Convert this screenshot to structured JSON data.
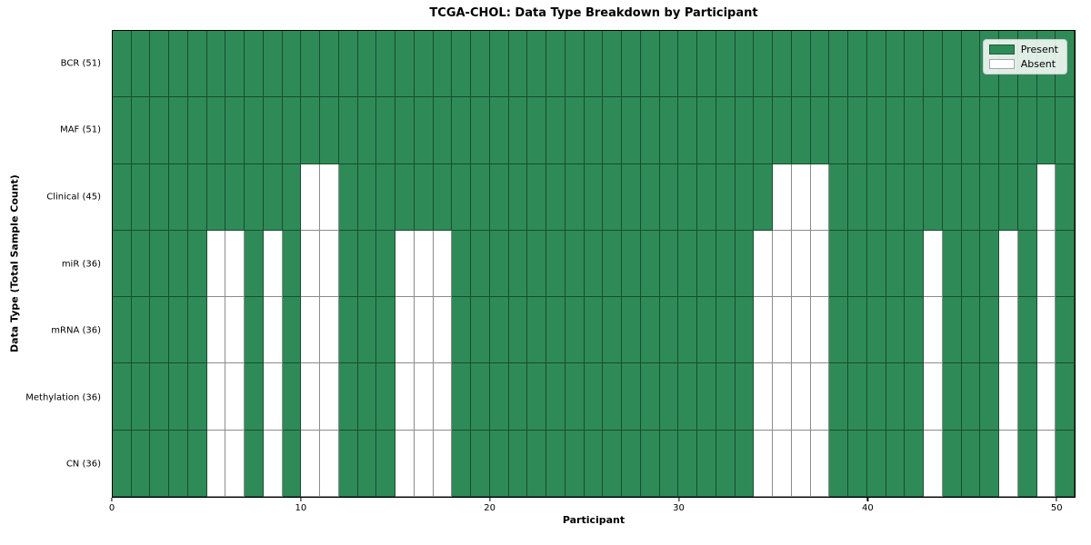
{
  "chart_data": {
    "type": "heatmap",
    "title": "TCGA-CHOL: Data Type Breakdown by Participant",
    "xlabel": "Participant",
    "ylabel": "Data Type (Total Sample Count)",
    "n_participants": 51,
    "x_range": [
      0,
      51
    ],
    "x_ticks": [
      0,
      10,
      20,
      30,
      40,
      50
    ],
    "grid": true,
    "colors": {
      "present": "#2e8b57",
      "absent": "#ffffff",
      "grid_line": "rgba(0,0,0,0.45)"
    },
    "legend": {
      "position": "upper-right",
      "entries": [
        {
          "label": "Present",
          "color": "#2e8b57"
        },
        {
          "label": "Absent",
          "color": "#ffffff"
        }
      ]
    },
    "rows": [
      {
        "label": "BCR (51)",
        "total": 51,
        "absent_participants": []
      },
      {
        "label": "MAF (51)",
        "total": 51,
        "absent_participants": []
      },
      {
        "label": "Clinical (45)",
        "total": 45,
        "absent_participants": [
          10,
          11,
          35,
          36,
          37,
          49
        ]
      },
      {
        "label": "miR (36)",
        "total": 36,
        "absent_participants": [
          5,
          6,
          8,
          10,
          11,
          15,
          16,
          17,
          34,
          35,
          36,
          37,
          43,
          47,
          49
        ]
      },
      {
        "label": "mRNA (36)",
        "total": 36,
        "absent_participants": [
          5,
          6,
          8,
          10,
          11,
          15,
          16,
          17,
          34,
          35,
          36,
          37,
          43,
          47,
          49
        ]
      },
      {
        "label": "Methylation (36)",
        "total": 36,
        "absent_participants": [
          5,
          6,
          8,
          10,
          11,
          15,
          16,
          17,
          34,
          35,
          36,
          37,
          43,
          47,
          49
        ]
      },
      {
        "label": "CN (36)",
        "total": 36,
        "absent_participants": [
          5,
          6,
          8,
          10,
          11,
          15,
          16,
          17,
          34,
          35,
          36,
          37,
          43,
          47,
          49
        ]
      }
    ]
  }
}
